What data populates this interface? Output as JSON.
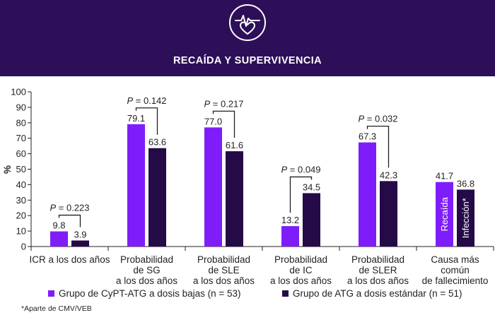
{
  "header": {
    "title": "RECAÍDA Y SUPERVIVENCIA",
    "icon": "heart-pulse-icon",
    "background": "#2d0f59"
  },
  "chart_data": {
    "type": "bar",
    "ylabel": "%",
    "ylim": [
      0,
      100
    ],
    "yticks": [
      0,
      10,
      20,
      30,
      40,
      50,
      60,
      70,
      80,
      90,
      100
    ],
    "grid": false,
    "legend_position": "bottom",
    "categories": [
      "ICR a los dos años",
      "Probabilidad de SG a los dos años",
      "Probabilidad de SLE a los dos años",
      "Probabilidad de IC a los dos años",
      "Probabilidad de SLER a los dos años",
      "Causa más común de fallecimiento"
    ],
    "category_lines": [
      [
        "ICR a los dos años"
      ],
      [
        "Probabilidad",
        "de SG",
        "a los dos años"
      ],
      [
        "Probabilidad",
        "de SLE",
        "a los dos años"
      ],
      [
        "Probabilidad",
        "de IC",
        "a los dos años"
      ],
      [
        "Probabilidad",
        "de SLER",
        "a los dos años"
      ],
      [
        "Causa más",
        "común",
        "de fallecimiento"
      ]
    ],
    "series": [
      {
        "name": "Grupo de CyPT-ATG a dosis bajas (n = 53)",
        "color": "#7f1dfa",
        "values": [
          9.8,
          79.1,
          77.0,
          13.2,
          67.3,
          41.7
        ],
        "labels": [
          "9.8",
          "79.1",
          "77.0",
          "13.2",
          "67.3",
          "41.7"
        ]
      },
      {
        "name": "Grupo de ATG a dosis estándar (n = 51)",
        "color": "#240a47",
        "values": [
          3.9,
          63.6,
          61.6,
          34.5,
          42.3,
          36.8
        ],
        "labels": [
          "3.9",
          "63.6",
          "61.6",
          "34.5",
          "42.3",
          "36.8"
        ]
      }
    ],
    "p_values": [
      "0.223",
      "0.142",
      "0.217",
      "0.049",
      "0.032",
      null
    ],
    "p_prefix": "P",
    "p_equals": " = ",
    "bar_annotations": [
      {
        "category_index": 5,
        "series_index": 0,
        "text": "Recaída"
      },
      {
        "category_index": 5,
        "series_index": 1,
        "text": "Infección*"
      }
    ]
  },
  "legend": {
    "series_1": "Grupo de CyPT-ATG a dosis bajas (n = 53)",
    "series_2": "Grupo de ATG a dosis estándar (n = 51)"
  },
  "footnote": "*Aparte de CMV/VEB"
}
